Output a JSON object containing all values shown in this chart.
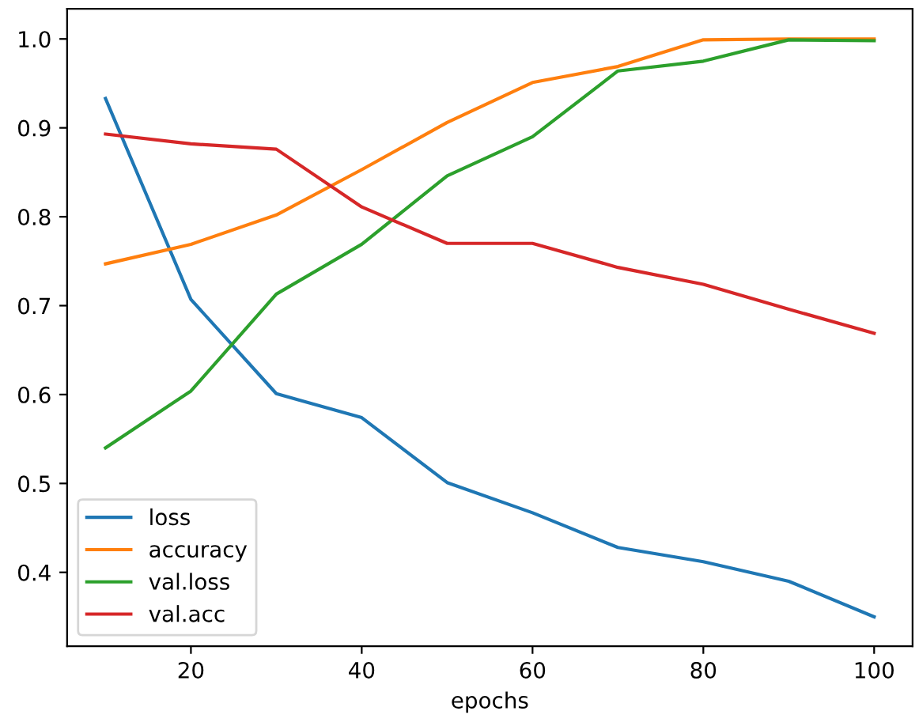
{
  "chart_data": {
    "type": "line",
    "xlabel": "epochs",
    "x": [
      10,
      20,
      30,
      40,
      50,
      60,
      70,
      80,
      90,
      100
    ],
    "series": [
      {
        "name": "loss",
        "color": "#1f77b4",
        "values": [
          0.933,
          0.707,
          0.601,
          0.574,
          0.501,
          0.467,
          0.428,
          0.412,
          0.39,
          0.35
        ]
      },
      {
        "name": "accuracy",
        "color": "#ff7f0e",
        "values": [
          0.747,
          0.769,
          0.802,
          0.853,
          0.906,
          0.951,
          0.969,
          0.999,
          1.0,
          1.0
        ]
      },
      {
        "name": "val.loss",
        "color": "#2ca02c",
        "values": [
          0.54,
          0.604,
          0.713,
          0.769,
          0.846,
          0.89,
          0.964,
          0.975,
          0.999,
          0.998
        ]
      },
      {
        "name": "val.acc",
        "color": "#d62728",
        "values": [
          0.893,
          0.882,
          0.876,
          0.811,
          0.77,
          0.77,
          0.743,
          0.724,
          0.696,
          0.669
        ]
      }
    ],
    "xlim": [
      5.5,
      104.5
    ],
    "ylim": [
      0.317,
      1.034
    ],
    "xticks": [
      20,
      40,
      60,
      80,
      100
    ],
    "yticks": [
      {
        "value": 0.4,
        "label": "0.4"
      },
      {
        "value": 0.5,
        "label": "0.5"
      },
      {
        "value": 0.6,
        "label": "0.6"
      },
      {
        "value": 0.7,
        "label": "0.7"
      },
      {
        "value": 0.8,
        "label": "0.8"
      },
      {
        "value": 0.9,
        "label": "0.9"
      },
      {
        "value": 1.0,
        "label": "1.0"
      }
    ],
    "grid": false,
    "legend": "bottom left",
    "marker": "none",
    "line_style": "solid"
  }
}
